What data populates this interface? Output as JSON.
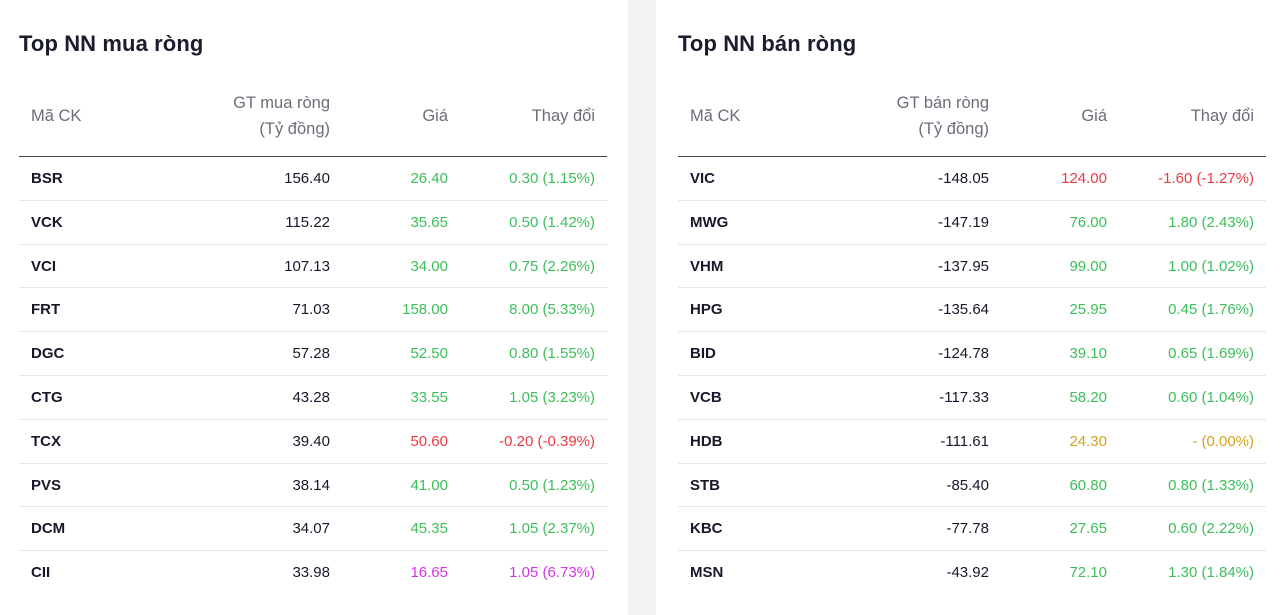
{
  "colors": {
    "up": "#3dbe5a",
    "down": "#ea3943",
    "ref": "#d4a21a",
    "ceiling": "#d633e8"
  },
  "buy": {
    "title": "Top NN mua ròng",
    "headers": {
      "code": "Mã CK",
      "value_line1": "GT mua ròng",
      "value_line2": "(Tỷ đồng)",
      "price": "Giá",
      "change": "Thay đổi"
    },
    "rows": [
      {
        "code": "BSR",
        "value": "156.40",
        "price": "26.40",
        "change": "0.30 (1.15%)",
        "trend": "up"
      },
      {
        "code": "VCK",
        "value": "115.22",
        "price": "35.65",
        "change": "0.50 (1.42%)",
        "trend": "up"
      },
      {
        "code": "VCI",
        "value": "107.13",
        "price": "34.00",
        "change": "0.75 (2.26%)",
        "trend": "up"
      },
      {
        "code": "FRT",
        "value": "71.03",
        "price": "158.00",
        "change": "8.00 (5.33%)",
        "trend": "up"
      },
      {
        "code": "DGC",
        "value": "57.28",
        "price": "52.50",
        "change": "0.80 (1.55%)",
        "trend": "up"
      },
      {
        "code": "CTG",
        "value": "43.28",
        "price": "33.55",
        "change": "1.05 (3.23%)",
        "trend": "up"
      },
      {
        "code": "TCX",
        "value": "39.40",
        "price": "50.60",
        "change": "-0.20 (-0.39%)",
        "trend": "down"
      },
      {
        "code": "PVS",
        "value": "38.14",
        "price": "41.00",
        "change": "0.50 (1.23%)",
        "trend": "up"
      },
      {
        "code": "DCM",
        "value": "34.07",
        "price": "45.35",
        "change": "1.05 (2.37%)",
        "trend": "up"
      },
      {
        "code": "CII",
        "value": "33.98",
        "price": "16.65",
        "change": "1.05 (6.73%)",
        "trend": "ceiling"
      }
    ]
  },
  "sell": {
    "title": "Top NN bán ròng",
    "headers": {
      "code": "Mã CK",
      "value_line1": "GT bán ròng",
      "value_line2": "(Tỷ đồng)",
      "price": "Giá",
      "change": "Thay đổi"
    },
    "rows": [
      {
        "code": "VIC",
        "value": "-148.05",
        "price": "124.00",
        "change": "-1.60 (-1.27%)",
        "trend": "down"
      },
      {
        "code": "MWG",
        "value": "-147.19",
        "price": "76.00",
        "change": "1.80 (2.43%)",
        "trend": "up"
      },
      {
        "code": "VHM",
        "value": "-137.95",
        "price": "99.00",
        "change": "1.00 (1.02%)",
        "trend": "up"
      },
      {
        "code": "HPG",
        "value": "-135.64",
        "price": "25.95",
        "change": "0.45 (1.76%)",
        "trend": "up"
      },
      {
        "code": "BID",
        "value": "-124.78",
        "price": "39.10",
        "change": "0.65 (1.69%)",
        "trend": "up"
      },
      {
        "code": "VCB",
        "value": "-117.33",
        "price": "58.20",
        "change": "0.60 (1.04%)",
        "trend": "up"
      },
      {
        "code": "HDB",
        "value": "-111.61",
        "price": "24.30",
        "change": "- (0.00%)",
        "trend": "ref"
      },
      {
        "code": "STB",
        "value": "-85.40",
        "price": "60.80",
        "change": "0.80 (1.33%)",
        "trend": "up"
      },
      {
        "code": "KBC",
        "value": "-77.78",
        "price": "27.65",
        "change": "0.60 (2.22%)",
        "trend": "up"
      },
      {
        "code": "MSN",
        "value": "-43.92",
        "price": "72.10",
        "change": "1.30 (1.84%)",
        "trend": "up"
      }
    ]
  }
}
